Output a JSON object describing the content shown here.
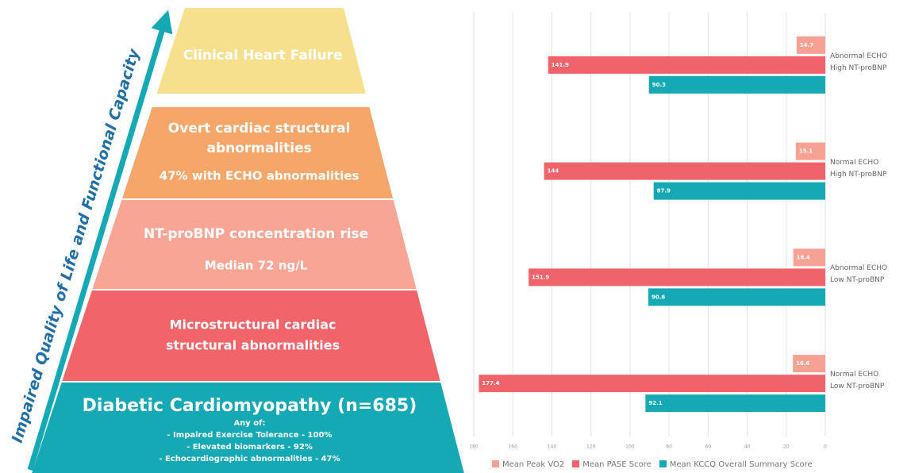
{
  "diagram": {
    "arrow_label": "Impaired Quality of Life and Functional Capacity",
    "levels": [
      {
        "lines": [
          "Clinical Heart Failure"
        ]
      },
      {
        "lines": [
          "Overt cardiac structural",
          "abnormalities",
          "47% with ECHO abnormalities"
        ]
      },
      {
        "lines": [
          "NT-proBNP concentration rise",
          "Median 72 ng/L"
        ]
      },
      {
        "lines": [
          "Microstructural cardiac",
          "structural abnormalities"
        ]
      },
      {
        "lines": [
          "Diabetic Cardiomyopathy (n=685)",
          "Any of:",
          "- Impaired Exercise Tolerance - 100%",
          "- Elevated biomarkers - 92%",
          "- Echocardiographic abnormalities - 47%"
        ]
      }
    ]
  },
  "chart_data": {
    "type": "bar",
    "orientation": "horizontal",
    "categories": [
      "Abnormal ECHO\nHigh NT-proBNP",
      "Normal ECHO\nHigh NT-proBNP",
      "Abnormal ECHO\nLow NT-proBNP",
      "Normal ECHO\nLow NT-proBNP"
    ],
    "series": [
      {
        "name": "Mean Peak VO2",
        "color": "#f6a193",
        "values": [
          14.7,
          15.1,
          16.4,
          16.6
        ]
      },
      {
        "name": "Mean PASE Score",
        "color": "#f0636b",
        "values": [
          141.9,
          144,
          151.9,
          177.4
        ]
      },
      {
        "name": "Mean KCCQ Overall Summary Score",
        "color": "#15a9b5",
        "values": [
          90.3,
          87.9,
          90.6,
          92.1
        ]
      }
    ],
    "xlim": [
      180,
      0
    ],
    "xticks": [
      180,
      160,
      140,
      120,
      100,
      80,
      60,
      40,
      20,
      0
    ],
    "grid": true,
    "legend": "bottom"
  }
}
